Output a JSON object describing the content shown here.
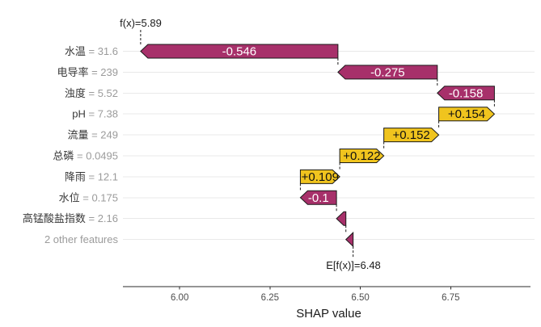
{
  "chart_data": {
    "type": "waterfall",
    "title": "",
    "xlabel": "SHAP value",
    "x_ticks": [
      {
        "label": "6.00",
        "value": 6.0
      },
      {
        "label": "6.25",
        "value": 6.25
      },
      {
        "label": "6.50",
        "value": 6.5
      },
      {
        "label": "6.75",
        "value": 6.75
      }
    ],
    "xlim": [
      5.843,
      6.982
    ],
    "grid": "horizontal-only",
    "legend": "none",
    "fx": {
      "label": "f(x)=5.89",
      "value": 5.89
    },
    "efx": {
      "label": "E[f(x)]=6.48",
      "value": 6.48
    },
    "colors": {
      "positive_fill": "#f0c41e",
      "negative_fill": "#a7306a",
      "bar_border": "#1a1a1a",
      "positive_text": "#111111",
      "negative_text": "#ffffff",
      "gridline": "#e9e9e9",
      "axis_line": "#2b2b2b",
      "dashed_connector": "#1a1a1a",
      "feature_name": "#383838",
      "feature_value": "#9b9b9b",
      "tick_label": "#4d4d4d",
      "axis_title": "#1a1a1a"
    },
    "rows": [
      {
        "feature": "水温",
        "value": "31.6",
        "shap": -0.546,
        "bar_label": "-0.546",
        "from": 6.438,
        "to": 5.892
      },
      {
        "feature": "电导率",
        "value": "239",
        "shap": -0.275,
        "bar_label": "-0.275",
        "from": 6.713,
        "to": 6.438
      },
      {
        "feature": "浊度",
        "value": "5.52",
        "shap": -0.158,
        "bar_label": "-0.158",
        "from": 6.871,
        "to": 6.713
      },
      {
        "feature": "pH",
        "value": "7.38",
        "shap": 0.154,
        "bar_label": "+0.154",
        "from": 6.717,
        "to": 6.871
      },
      {
        "feature": "流量",
        "value": "249",
        "shap": 0.152,
        "bar_label": "+0.152",
        "from": 6.565,
        "to": 6.717
      },
      {
        "feature": "总磷",
        "value": "0.0495",
        "shap": 0.122,
        "bar_label": "+0.122",
        "from": 6.443,
        "to": 6.565
      },
      {
        "feature": "降雨",
        "value": "12.1",
        "shap": 0.109,
        "bar_label": "+0.109",
        "from": 6.334,
        "to": 6.443
      },
      {
        "feature": "水位",
        "value": "0.175",
        "shap": -0.1,
        "bar_label": "-0.1",
        "from": 6.434,
        "to": 6.334
      },
      {
        "feature": "高锰酸盐指数",
        "value": "2.16",
        "shap": -0.026,
        "bar_label": "",
        "from": 6.46,
        "to": 6.434
      },
      {
        "feature": "2 other features",
        "value": "",
        "shap": -0.02,
        "bar_label": "",
        "from": 6.48,
        "to": 6.46
      }
    ]
  }
}
